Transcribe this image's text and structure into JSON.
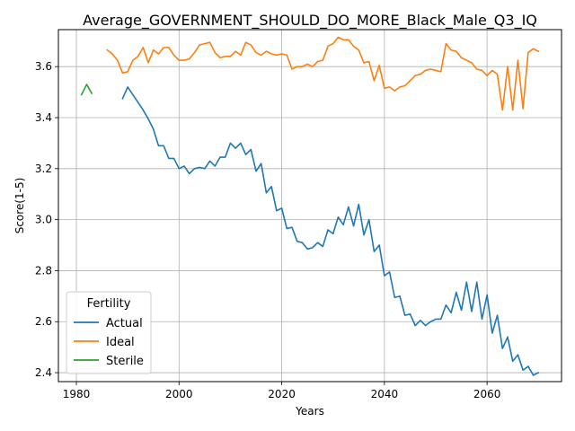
{
  "chart_data": {
    "type": "line",
    "title": "Average_GOVERNMENT_SHOULD_DO_MORE_Black_Male_Q3_IQ",
    "xlabel": "Years",
    "ylabel": "Score(1-5)",
    "xlim": [
      1976.5,
      2074.5
    ],
    "ylim": [
      2.365,
      3.745
    ],
    "xticks": [
      1980,
      2000,
      2020,
      2040,
      2060
    ],
    "yticks": [
      2.4,
      2.6,
      2.8,
      3.0,
      3.2,
      3.4,
      3.6
    ],
    "grid": true,
    "legend": {
      "title": "Fertility",
      "position": "lower-left"
    },
    "series": [
      {
        "name": "Actual",
        "color": "#1f77b4",
        "x": [
          1989,
          1990,
          1991,
          1992,
          1993,
          1994,
          1995,
          1996,
          1997,
          1998,
          1999,
          2000,
          2001,
          2002,
          2003,
          2004,
          2005,
          2006,
          2007,
          2008,
          2009,
          2010,
          2011,
          2012,
          2013,
          2014,
          2015,
          2016,
          2017,
          2018,
          2019,
          2020,
          2021,
          2022,
          2023,
          2024,
          2025,
          2026,
          2027,
          2028,
          2029,
          2030,
          2031,
          2032,
          2033,
          2034,
          2035,
          2036,
          2037,
          2038,
          2039,
          2040,
          2041,
          2042,
          2043,
          2044,
          2045,
          2046,
          2047,
          2048,
          2049,
          2050,
          2051,
          2052,
          2053,
          2054,
          2055,
          2056,
          2057,
          2058,
          2059,
          2060,
          2061,
          2062,
          2063,
          2064,
          2065,
          2066,
          2067,
          2068,
          2069,
          2070
        ],
        "values": [
          3.475,
          3.52,
          3.49,
          3.46,
          3.43,
          3.395,
          3.355,
          3.29,
          3.29,
          3.24,
          3.24,
          3.2,
          3.21,
          3.18,
          3.2,
          3.205,
          3.2,
          3.23,
          3.21,
          3.245,
          3.245,
          3.3,
          3.28,
          3.3,
          3.255,
          3.275,
          3.19,
          3.22,
          3.105,
          3.13,
          3.035,
          3.045,
          2.965,
          2.97,
          2.915,
          2.91,
          2.885,
          2.89,
          2.91,
          2.895,
          2.96,
          2.945,
          3.01,
          2.98,
          3.05,
          2.975,
          3.06,
          2.94,
          3.0,
          2.875,
          2.9,
          2.78,
          2.795,
          2.695,
          2.7,
          2.625,
          2.63,
          2.585,
          2.605,
          2.585,
          2.6,
          2.61,
          2.61,
          2.665,
          2.635,
          2.715,
          2.645,
          2.755,
          2.64,
          2.755,
          2.61,
          2.705,
          2.555,
          2.625,
          2.495,
          2.54,
          2.445,
          2.47,
          2.41,
          2.425,
          2.39,
          2.4
        ]
      },
      {
        "name": "Ideal",
        "color": "#ff7f0e",
        "x": [
          1986,
          1987,
          1988,
          1989,
          1990,
          1991,
          1992,
          1993,
          1994,
          1995,
          1996,
          1997,
          1998,
          1999,
          2000,
          2001,
          2002,
          2003,
          2004,
          2005,
          2006,
          2007,
          2008,
          2009,
          2010,
          2011,
          2012,
          2013,
          2014,
          2015,
          2016,
          2017,
          2018,
          2019,
          2020,
          2021,
          2022,
          2023,
          2024,
          2025,
          2026,
          2027,
          2028,
          2029,
          2030,
          2031,
          2032,
          2033,
          2034,
          2035,
          2036,
          2037,
          2038,
          2039,
          2040,
          2041,
          2042,
          2043,
          2044,
          2045,
          2046,
          2047,
          2048,
          2049,
          2050,
          2051,
          2052,
          2053,
          2054,
          2055,
          2056,
          2057,
          2058,
          2059,
          2060,
          2061,
          2062,
          2063,
          2064,
          2065,
          2066,
          2067,
          2068,
          2069,
          2070
        ],
        "values": [
          3.665,
          3.65,
          3.625,
          3.575,
          3.58,
          3.625,
          3.64,
          3.675,
          3.615,
          3.665,
          3.65,
          3.675,
          3.675,
          3.645,
          3.625,
          3.625,
          3.63,
          3.655,
          3.685,
          3.69,
          3.695,
          3.655,
          3.635,
          3.64,
          3.64,
          3.66,
          3.645,
          3.695,
          3.685,
          3.655,
          3.645,
          3.66,
          3.65,
          3.645,
          3.65,
          3.645,
          3.59,
          3.6,
          3.6,
          3.61,
          3.6,
          3.62,
          3.625,
          3.68,
          3.69,
          3.715,
          3.705,
          3.705,
          3.68,
          3.665,
          3.615,
          3.62,
          3.545,
          3.605,
          3.515,
          3.52,
          3.505,
          3.52,
          3.525,
          3.545,
          3.565,
          3.57,
          3.585,
          3.59,
          3.585,
          3.58,
          3.69,
          3.665,
          3.66,
          3.635,
          3.625,
          3.615,
          3.59,
          3.585,
          3.565,
          3.585,
          3.57,
          3.43,
          3.6,
          3.43,
          3.625,
          3.435,
          3.655,
          3.67,
          3.66
        ]
      },
      {
        "name": "Sterile",
        "color": "#2ca02c",
        "x": [
          1981,
          1982,
          1983
        ],
        "values": [
          3.49,
          3.53,
          3.495
        ]
      }
    ]
  }
}
